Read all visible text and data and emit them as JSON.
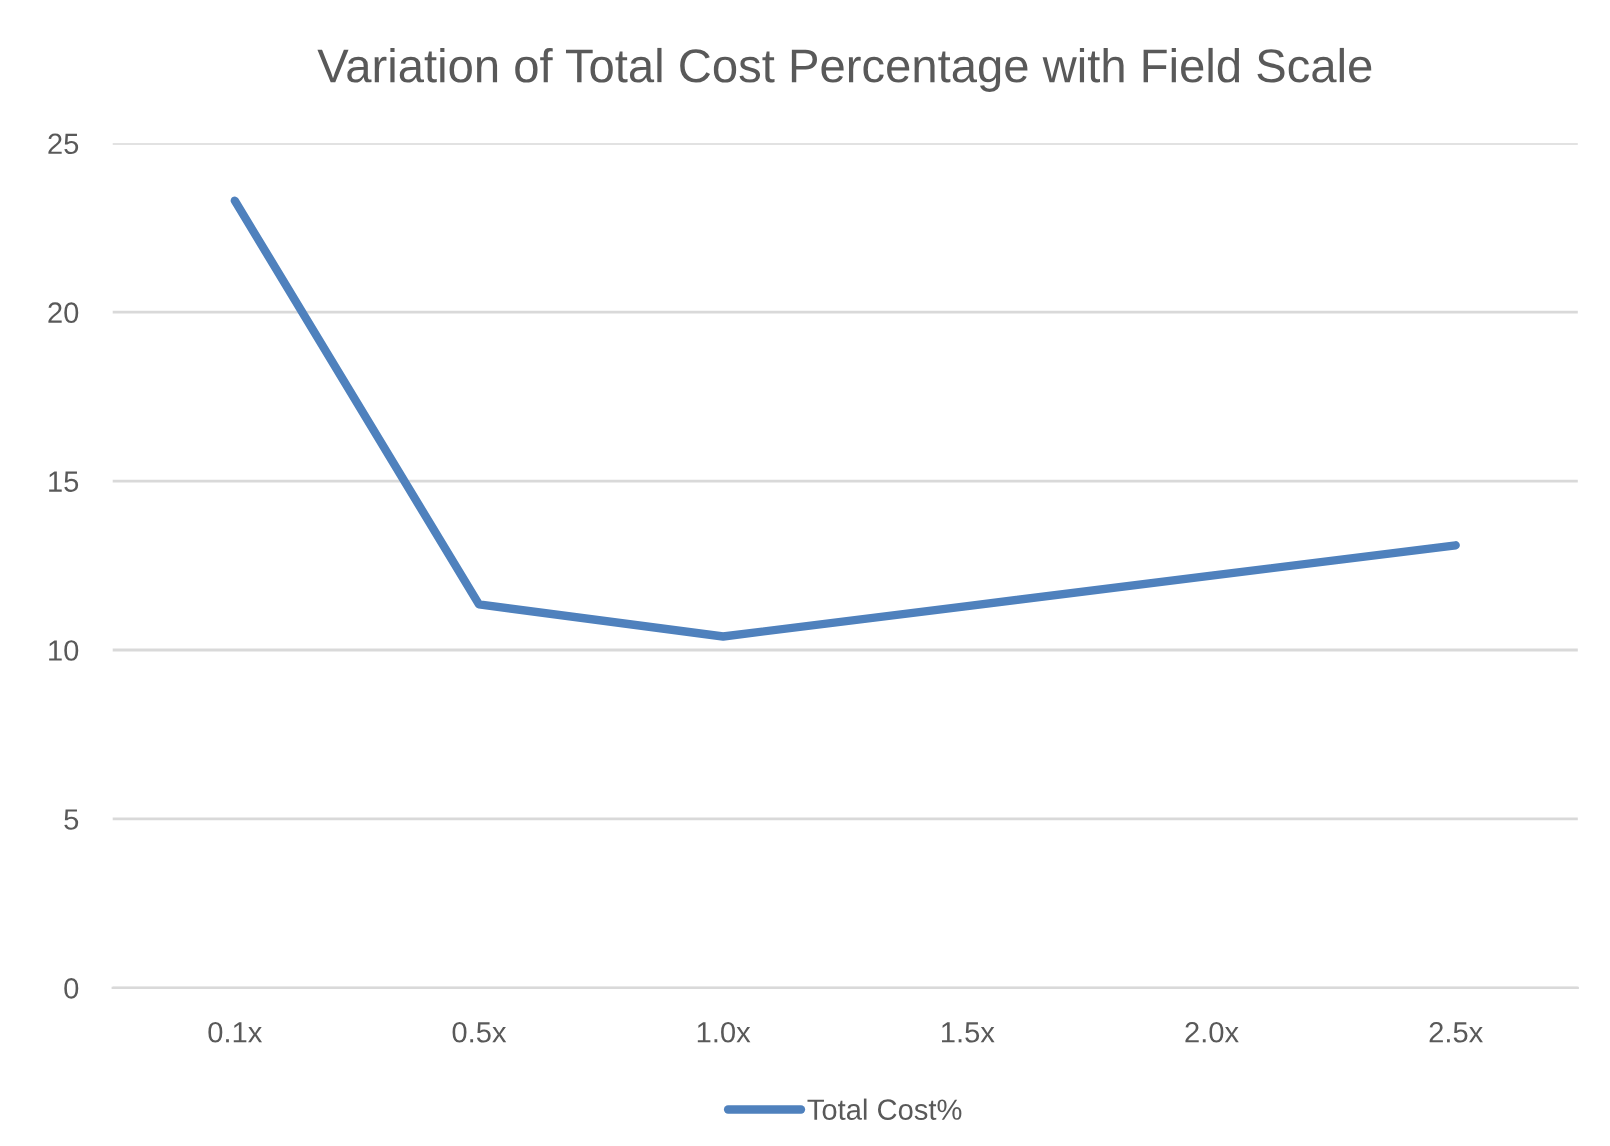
{
  "chart_data": {
    "type": "line",
    "title": "Variation of Total Cost Percentage with Field Scale",
    "categories": [
      "0.1x",
      "0.5x",
      "1.0x",
      "1.5x",
      "2.0x",
      "2.5x"
    ],
    "series": [
      {
        "name": "Total Cost%",
        "color": "#4f81bd",
        "values": [
          23.3,
          11.35,
          10.4,
          11.3,
          12.2,
          13.1
        ]
      }
    ],
    "ylim": [
      0,
      25
    ],
    "yticks": [
      0,
      5,
      10,
      15,
      20,
      25
    ],
    "grid": "y",
    "legend": "bottom",
    "marker": "none",
    "line_style": "solid"
  }
}
